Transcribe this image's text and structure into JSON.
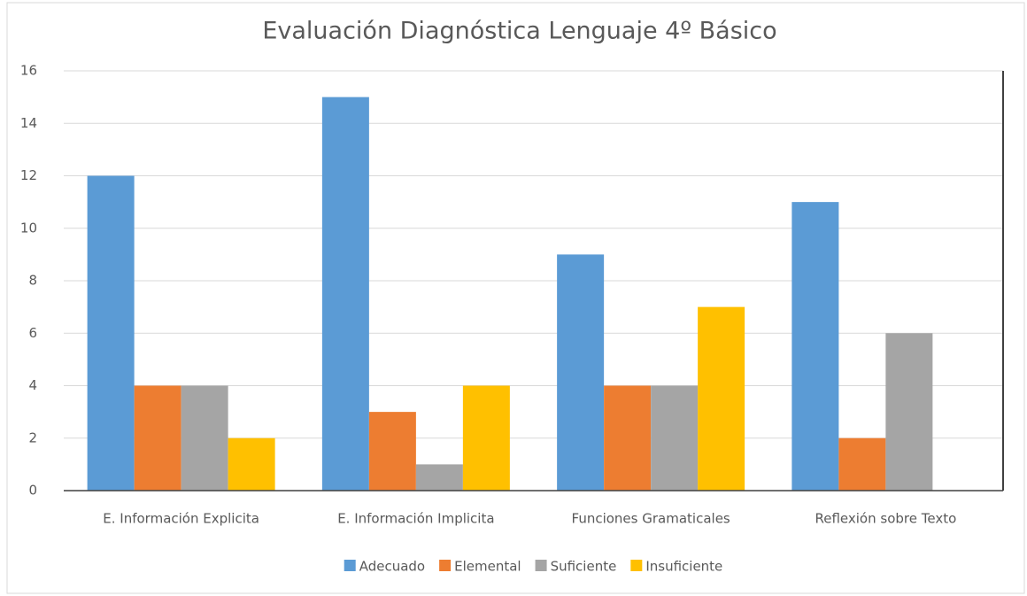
{
  "chart_data": {
    "type": "bar",
    "title": "Evaluación Diagnóstica Lenguaje 4º Básico",
    "categories": [
      "E. Información Explicita",
      "E. Información Implicita",
      "Funciones Gramaticales",
      "Reflexión sobre Texto"
    ],
    "series": [
      {
        "name": "Adecuado",
        "color": "#5b9bd5",
        "values": [
          12,
          15,
          9,
          11
        ]
      },
      {
        "name": "Elemental",
        "color": "#ed7d31",
        "values": [
          4,
          3,
          4,
          2
        ]
      },
      {
        "name": "Suficiente",
        "color": "#a5a5a5",
        "values": [
          4,
          1,
          4,
          6
        ]
      },
      {
        "name": "Insuficiente",
        "color": "#ffc000",
        "values": [
          2,
          4,
          7,
          0
        ]
      }
    ],
    "ylim": [
      0,
      16
    ],
    "yticks": [
      0,
      2,
      4,
      6,
      8,
      10,
      12,
      14,
      16
    ],
    "grid": true,
    "legend": "bottom"
  }
}
